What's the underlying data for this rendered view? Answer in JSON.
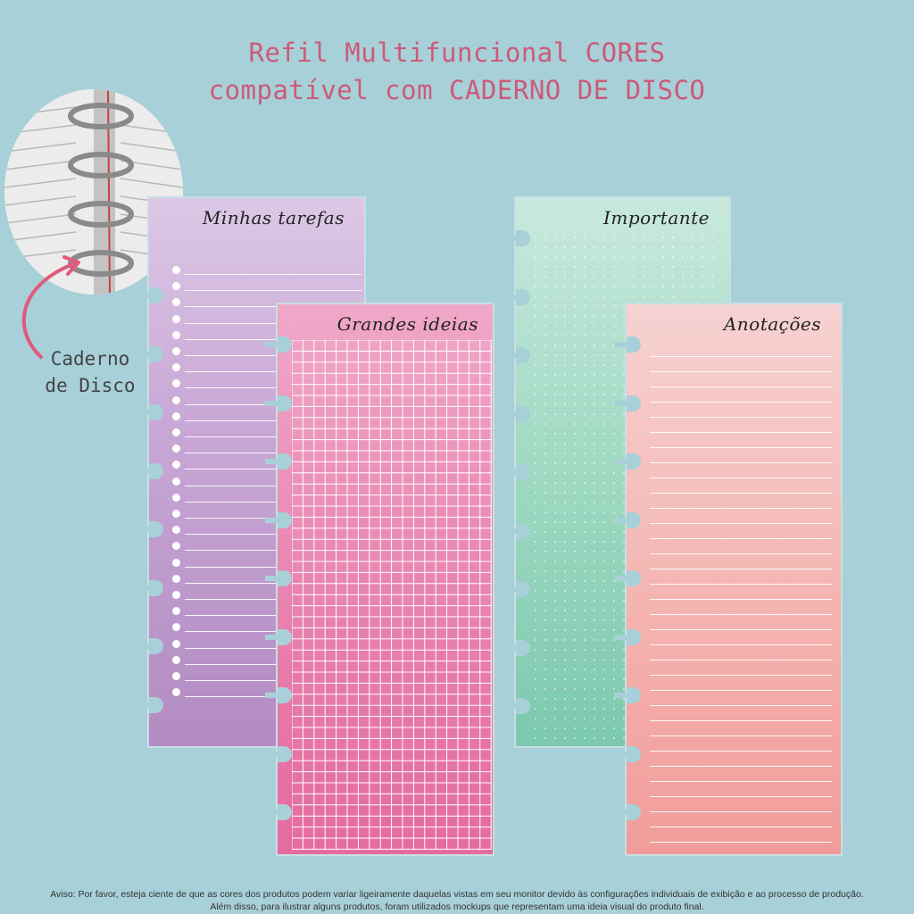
{
  "header": {
    "line1": "Refil Multifuncional CORES",
    "line2": "compatível com CADERNO DE DISCO"
  },
  "callout": {
    "line1": "Caderno",
    "line2": "de Disco"
  },
  "sheets": {
    "tarefas": "Minhas tarefas",
    "importante": "Importante",
    "ideias": "Grandes ideias",
    "anotacoes": "Anotações"
  },
  "disclaimer": {
    "line1": "Aviso: Por favor, esteja ciente de que as cores dos produtos podem variar ligeiramente daquelas vistas em seu monitor devido às configurações individuais de exibição e ao processo de produção.",
    "line2": "Além disso, para ilustrar alguns produtos, foram utilizados mockups que representam uma ideia visual do produto final."
  },
  "colors": {
    "background": "#a8d0d8",
    "title": "#cc5a78",
    "arrow": "#e05a7a"
  }
}
